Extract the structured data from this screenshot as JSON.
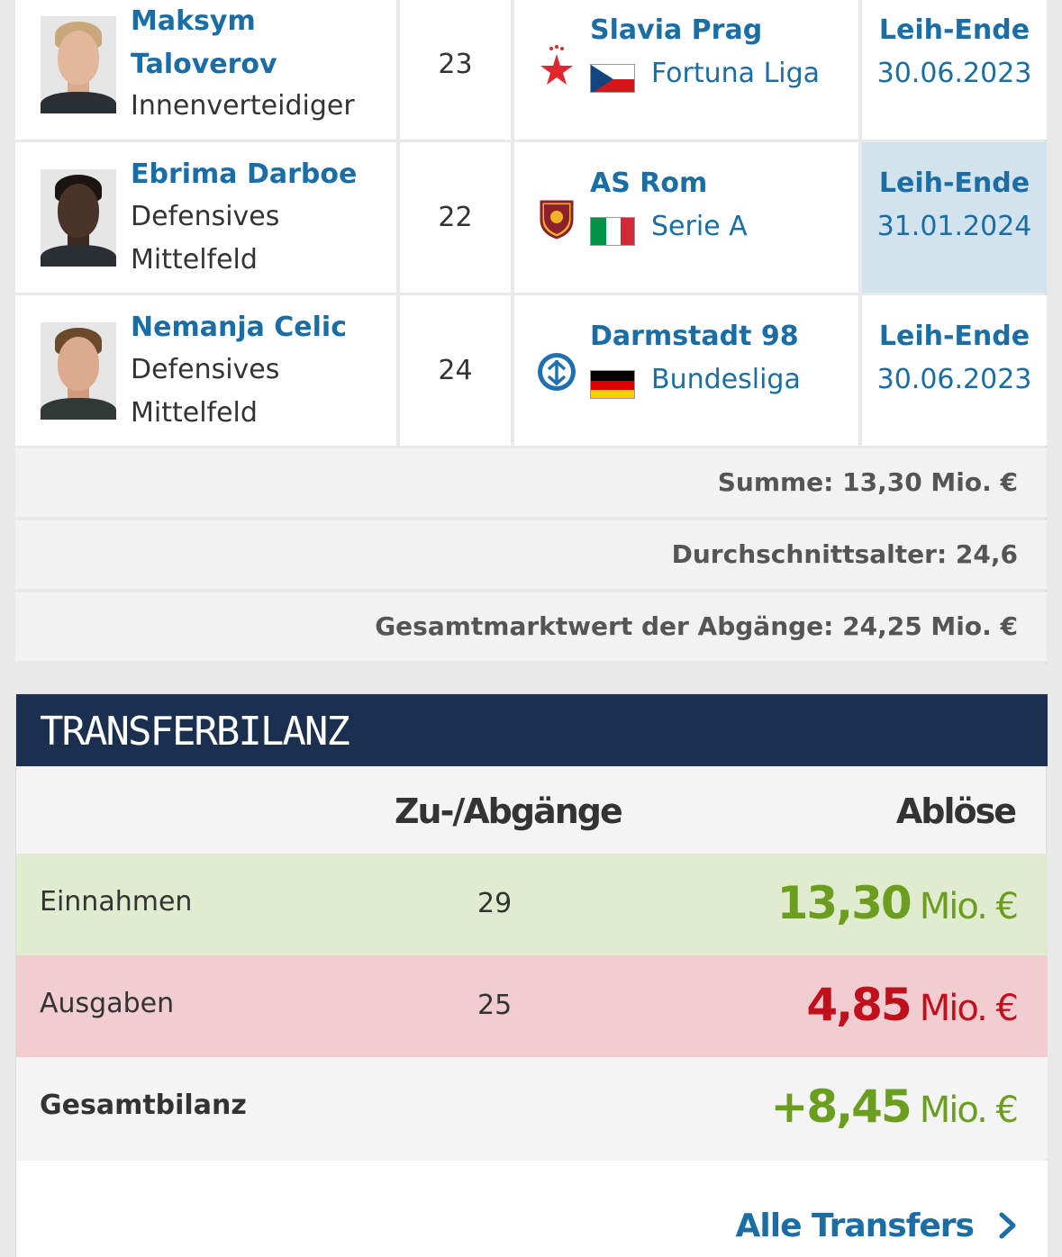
{
  "players": [
    {
      "first": "Maksym",
      "last": "Taloverov",
      "position_1": "Innenverteidiger",
      "position_2": "",
      "age": "23",
      "club": "Slavia Prag",
      "league": "Fortuna Liga",
      "flag_icon": "czech-flag-icon",
      "club_icon": "slavia-star-icon",
      "fee_label": "Leih-Ende",
      "fee_date": "30.06.2023"
    },
    {
      "first": "Ebrima Darboe",
      "last": "",
      "position_1": "Defensives",
      "position_2": "Mittelfeld",
      "age": "22",
      "club": "AS Rom",
      "league": "Serie A",
      "flag_icon": "italy-flag-icon",
      "club_icon": "as-roma-crest-icon",
      "fee_label": "Leih-Ende",
      "fee_date": "31.01.2024"
    },
    {
      "first": "Nemanja Celic",
      "last": "",
      "position_1": "Defensives",
      "position_2": "Mittelfeld",
      "age": "24",
      "club": "Darmstadt 98",
      "league": "Bundesliga",
      "flag_icon": "germany-flag-icon",
      "club_icon": "darmstadt-crest-icon",
      "fee_label": "Leih-Ende",
      "fee_date": "30.06.2023"
    }
  ],
  "summary": {
    "sum": "Summe: 13,30 Mio. €",
    "avg_age": "Durchschnittsalter: 24,6",
    "market_value": "Gesamtmarktwert der Abgänge: 24,25 Mio. €"
  },
  "bilanz": {
    "title": "TRANSFERBILANZ",
    "col_transfers": "Zu-/Abgänge",
    "col_fee": "Ablöse",
    "income": {
      "label": "Einnahmen",
      "count": "29",
      "amount": "13,30",
      "unit": "Mio. €"
    },
    "expense": {
      "label": "Ausgaben",
      "count": "25",
      "amount": "4,85",
      "unit": "Mio. €"
    },
    "total": {
      "label": "Gesamtbilanz",
      "amount": "+8,45",
      "unit": "Mio. €"
    },
    "link": "Alle Transfers"
  },
  "colors": {
    "link_blue": "#1a6ea5",
    "header_navy": "#1b2f4f",
    "income_green": "#6b9e1f",
    "expense_red": "#c0101c"
  }
}
